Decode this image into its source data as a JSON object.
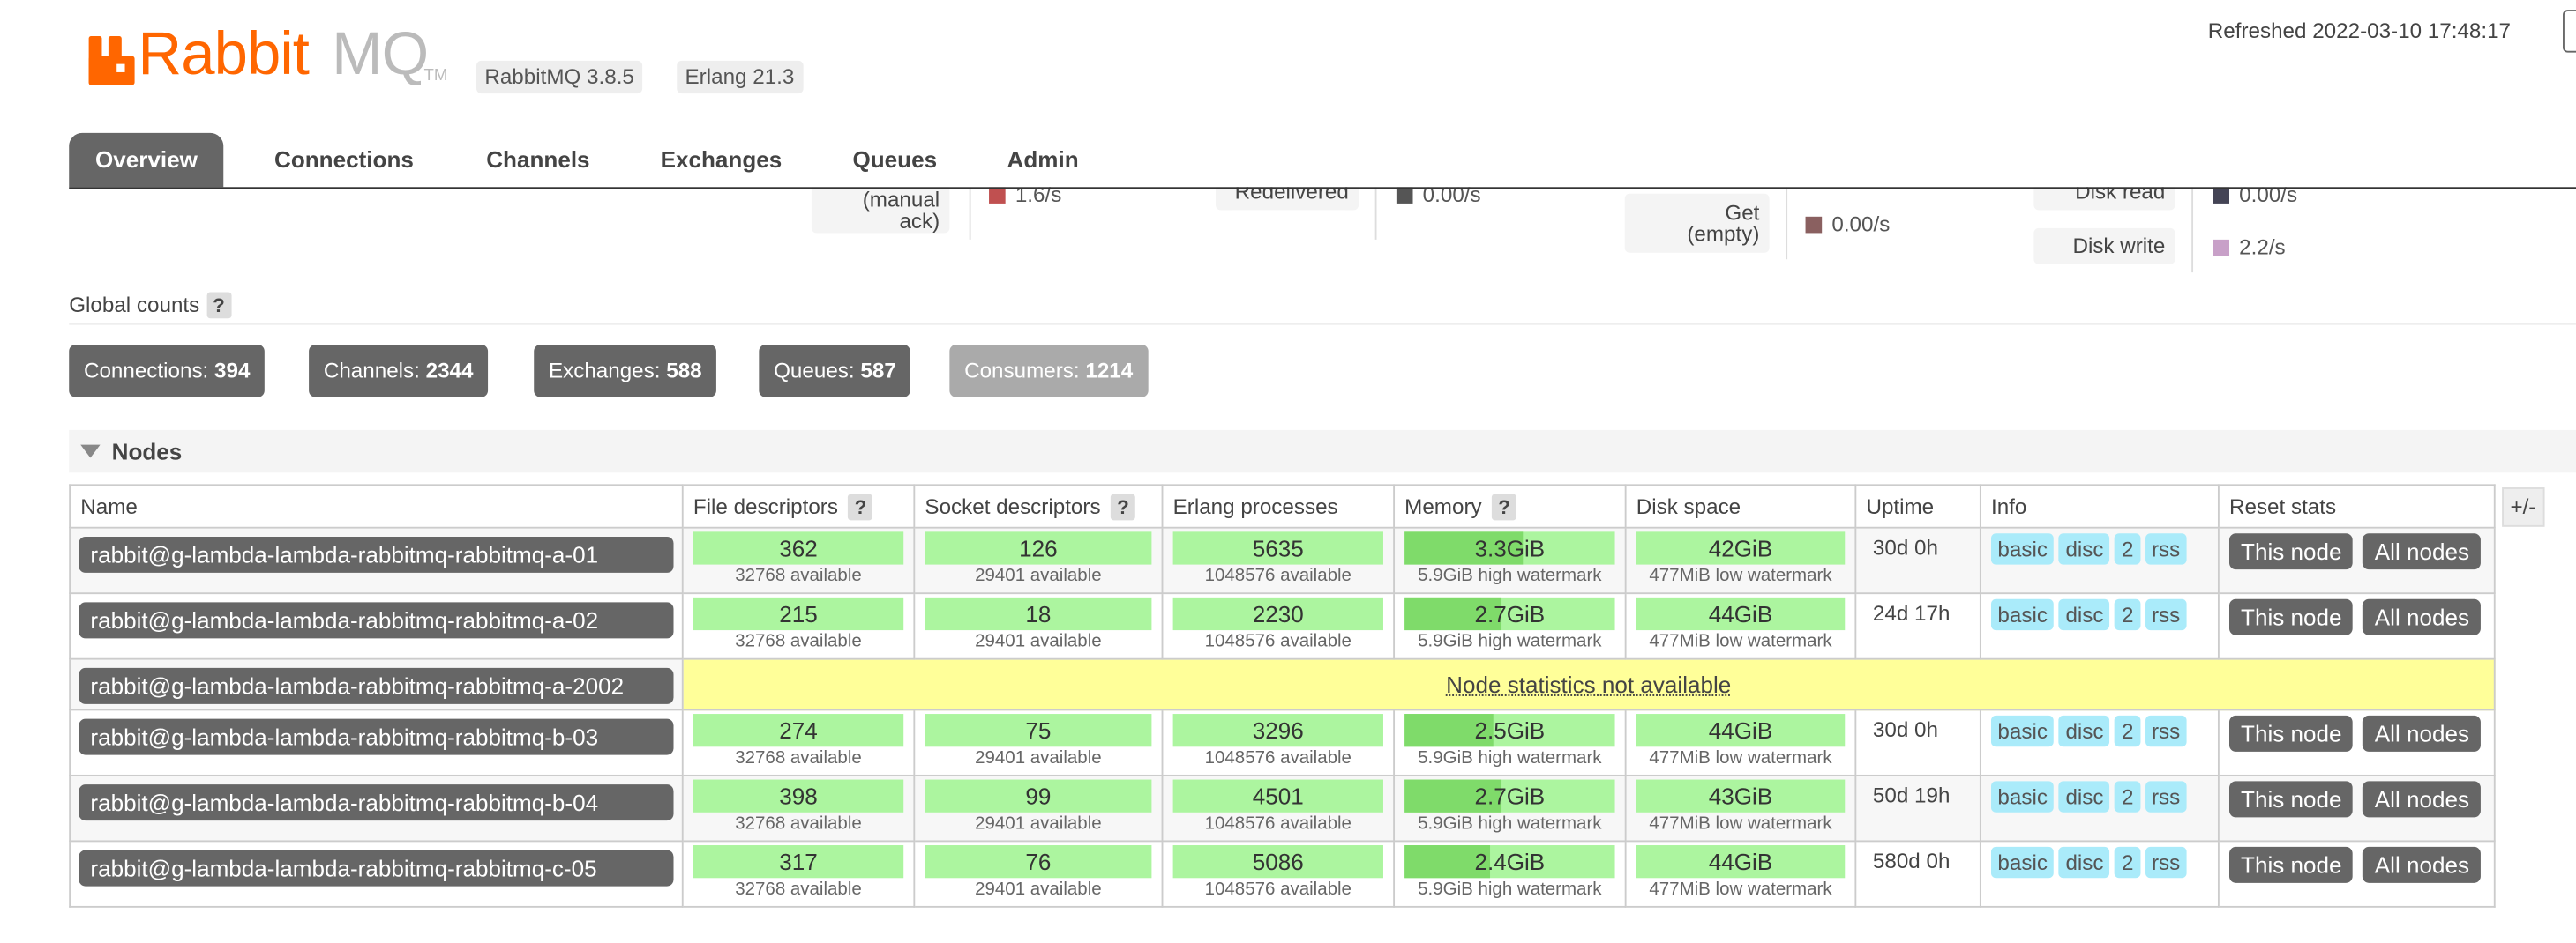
{
  "header": {
    "logo_rabbit": "Rabbit",
    "logo_mq": "MQ",
    "logo_tm": "TM",
    "version_rabbitmq": "RabbitMQ 3.8.5",
    "version_erlang": "Erlang 21.3",
    "refreshed": "Refreshed 2022-03-10 17:48:17"
  },
  "tabs": [
    {
      "label": "Overview",
      "active": true
    },
    {
      "label": "Connections"
    },
    {
      "label": "Channels"
    },
    {
      "label": "Exchanges"
    },
    {
      "label": "Queues"
    },
    {
      "label": "Admin"
    }
  ],
  "partial_stats": {
    "manual_ack_label": "(manual\nack)",
    "manual_ack_value": "1.6/s",
    "redelivered_label": "Redelivered",
    "redelivered_value": "0.00/s",
    "get_empty_label": "Get\n(empty)",
    "get_empty_value": "0.00/s",
    "disk_read_label": "Disk read",
    "disk_read_value": "0.00/s",
    "disk_write_label": "Disk write",
    "disk_write_value": "2.2/s",
    "colors": {
      "manual_ack": "#c05050",
      "redelivered": "#555555",
      "get_empty": "#8a6060",
      "disk_read": "#444455",
      "disk_write": "#c8a0c8"
    }
  },
  "global_counts": {
    "title": "Global counts",
    "help": "?",
    "items": [
      {
        "label": "Connections:",
        "value": "394"
      },
      {
        "label": "Channels:",
        "value": "2344"
      },
      {
        "label": "Exchanges:",
        "value": "588"
      },
      {
        "label": "Queues:",
        "value": "587"
      },
      {
        "label": "Consumers:",
        "value": "1214"
      }
    ]
  },
  "nodes": {
    "title": "Nodes",
    "plus_minus": "+/-",
    "columns": [
      "Name",
      "File descriptors",
      "Socket descriptors",
      "Erlang processes",
      "Memory",
      "Disk space",
      "Uptime",
      "Info",
      "Reset stats"
    ],
    "help": "?",
    "not_available": "Node statistics not available",
    "info_pills": [
      "basic",
      "disc",
      "2",
      "rss"
    ],
    "btn_this": "This node",
    "btn_all": "All nodes",
    "rows": [
      {
        "name": "rabbit@g-lambda-lambda-rabbitmq-rabbitmq-a-01",
        "fd": "362",
        "fd_sub": "32768 available",
        "sd": "126",
        "sd_sub": "29401 available",
        "ep": "5635",
        "ep_sub": "1048576 available",
        "mem": "3.3GiB",
        "mem_sub": "5.9GiB high watermark",
        "mem_fill": 0.56,
        "disk": "42GiB",
        "disk_sub": "477MiB low watermark",
        "uptime": "30d 0h"
      },
      {
        "name": "rabbit@g-lambda-lambda-rabbitmq-rabbitmq-a-02",
        "fd": "215",
        "fd_sub": "32768 available",
        "sd": "18",
        "sd_sub": "29401 available",
        "ep": "2230",
        "ep_sub": "1048576 available",
        "mem": "2.7GiB",
        "mem_sub": "5.9GiB high watermark",
        "mem_fill": 0.46,
        "disk": "44GiB",
        "disk_sub": "477MiB low watermark",
        "uptime": "24d 17h"
      },
      {
        "name": "rabbit@g-lambda-lambda-rabbitmq-rabbitmq-a-2002",
        "unavailable": true
      },
      {
        "name": "rabbit@g-lambda-lambda-rabbitmq-rabbitmq-b-03",
        "fd": "274",
        "fd_sub": "32768 available",
        "sd": "75",
        "sd_sub": "29401 available",
        "ep": "3296",
        "ep_sub": "1048576 available",
        "mem": "2.5GiB",
        "mem_sub": "5.9GiB high watermark",
        "mem_fill": 0.42,
        "disk": "44GiB",
        "disk_sub": "477MiB low watermark",
        "uptime": "30d 0h"
      },
      {
        "name": "rabbit@g-lambda-lambda-rabbitmq-rabbitmq-b-04",
        "fd": "398",
        "fd_sub": "32768 available",
        "sd": "99",
        "sd_sub": "29401 available",
        "ep": "4501",
        "ep_sub": "1048576 available",
        "mem": "2.7GiB",
        "mem_sub": "5.9GiB high watermark",
        "mem_fill": 0.46,
        "disk": "43GiB",
        "disk_sub": "477MiB low watermark",
        "uptime": "50d 19h"
      },
      {
        "name": "rabbit@g-lambda-lambda-rabbitmq-rabbitmq-c-05",
        "fd": "317",
        "fd_sub": "32768 available",
        "sd": "76",
        "sd_sub": "29401 available",
        "ep": "5086",
        "ep_sub": "1048576 available",
        "mem": "2.4GiB",
        "mem_sub": "5.9GiB high watermark",
        "mem_fill": 0.41,
        "disk": "44GiB",
        "disk_sub": "477MiB low watermark",
        "uptime": "580d 0h"
      }
    ]
  },
  "colors": {
    "logo": "#ff6600",
    "tab_active": "#666666",
    "bar": "#acf59f",
    "bar_fill": "#7fdb6a",
    "pill": "#aaebfa",
    "not_available": "#ffff99"
  }
}
